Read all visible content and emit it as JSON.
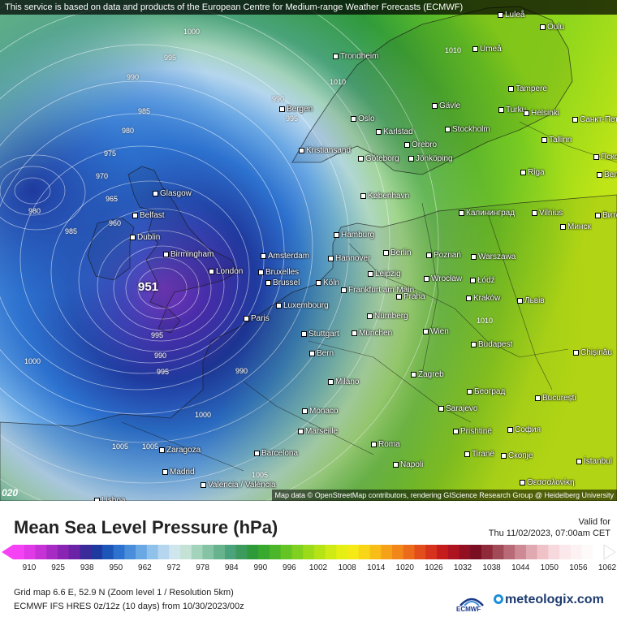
{
  "banner": "This service is based on data and products of the European Centre for Medium-range Weather Forecasts (ECMWF)",
  "attribution": "Map data © OpenStreetMap contributors, rendering GIScience Research Group @ Heidelberg University",
  "corner_label": "020",
  "low_center": "951",
  "title": "Mean Sea Level Pressure (hPa)",
  "valid_label": "Valid for",
  "valid_time": "Thu 11/02/2023, 07:00am CET",
  "grid_info": "Grid map 6.6 E, 52.9 N (Zoom level 1 / Resolution 5km)",
  "model_info": "ECMWF IFS HRES 0z/12z (10 days) from 10/30/2023/00z",
  "ecmwf_label": "ECMWF",
  "brand": "meteologix.com",
  "scale_labels": [
    "910",
    "925",
    "938",
    "950",
    "962",
    "972",
    "978",
    "984",
    "990",
    "996",
    "1002",
    "1008",
    "1014",
    "1020",
    "1026",
    "1032",
    "1038",
    "1044",
    "1050",
    "1056",
    "1062"
  ],
  "scale_colors": [
    "#f542f5",
    "#e03ae8",
    "#c632d6",
    "#a82ac4",
    "#8a24b3",
    "#6a22a6",
    "#3a2a9a",
    "#1f3a9e",
    "#1e55b8",
    "#2d72cf",
    "#4a8edb",
    "#6aa8e4",
    "#8fc1ea",
    "#b5d6ee",
    "#d0e6ee",
    "#c5e2d6",
    "#a4d3bc",
    "#84c3a3",
    "#66b38d",
    "#4aa37a",
    "#3b9a5c",
    "#2f9a3a",
    "#38a82e",
    "#4cb62a",
    "#64c424",
    "#7fd01f",
    "#9bdb1a",
    "#b5e316",
    "#cfea14",
    "#e6ef14",
    "#f6ea16",
    "#f8d516",
    "#f8bd17",
    "#f6a218",
    "#f28719",
    "#ec6b1a",
    "#e34d1b",
    "#d6321c",
    "#c51c1e",
    "#ad1420",
    "#921022",
    "#7a0e22",
    "#8e2a3a",
    "#a34a58",
    "#b86a76",
    "#cd8a94",
    "#e0a8b0",
    "#efc2c8",
    "#f7d8dc",
    "#fbe8ea",
    "#fdf2f3",
    "#fefafa",
    "#ffffff"
  ],
  "isobar_labels": [
    "1000",
    "995",
    "990",
    "985",
    "980",
    "975",
    "970",
    "965",
    "960",
    "990",
    "995",
    "985",
    "980",
    "990",
    "995",
    "1000",
    "1005",
    "1010",
    "1010",
    "1010",
    "1005",
    "1005",
    "1000",
    "995",
    "990"
  ],
  "cities": [
    "Luleå",
    "Oulu",
    "Umeå",
    "Trondheim",
    "Tampere",
    "Gävle",
    "Turku",
    "Helsinki",
    "Санкт-Пет",
    "Bergen",
    "Oslo",
    "Karlstad",
    "Stockholm",
    "Tallinn",
    "Örebro",
    "Псков",
    "Kristiansand",
    "Göteborg",
    "Jönköping",
    "Riga",
    "Велик",
    "Glasgow",
    "København",
    "Belfast",
    "Калининград",
    "Vilnius",
    "Витеб",
    "Минск",
    "Dublin",
    "Hamburg",
    "Birmingham",
    "Amsterdam",
    "Hannover",
    "Berlin",
    "Poznań",
    "Warszawa",
    "Bruxelles",
    "London",
    "Brussel",
    "Köln",
    "Leipzig",
    "Wrocław",
    "Łódź",
    "Frankfurt am Main",
    "Praha",
    "Kraków",
    "Львів",
    "Luxembourg",
    "Paris",
    "Nürnberg",
    "Stuttgart",
    "München",
    "Wien",
    "Budapest",
    "Chișinău",
    "Bern",
    "Zagreb",
    "Milano",
    "Београд",
    "București",
    "Monaco",
    "Sarajevo",
    "Marseille",
    "Prishtinë",
    "София",
    "Roma",
    "Zaragoza",
    "Barcelona",
    "Tiranë",
    "Скопје",
    "Madrid",
    "Napoli",
    "İstanbul",
    "Valencia / València",
    "Θεσσαλονίκη",
    "Lisboa"
  ]
}
